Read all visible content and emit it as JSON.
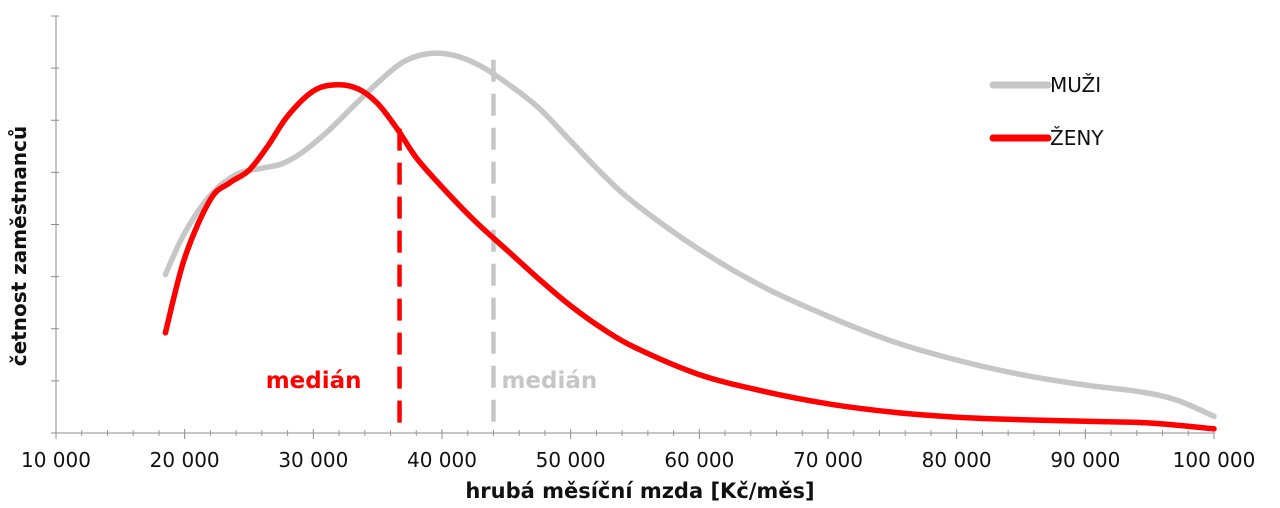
{
  "chart_data": {
    "type": "line",
    "xlabel": "hrubá měsíční mzda [Kč/měs]",
    "ylabel": "četnost zaměstnanců",
    "xlim": [
      10000,
      100000
    ],
    "ylim": [
      0,
      100
    ],
    "x_ticks": [
      "10 000",
      "20 000",
      "30 000",
      "40 000",
      "50 000",
      "60 000",
      "70 000",
      "80 000",
      "90 000",
      "100 000"
    ],
    "x_tick_values": [
      10000,
      20000,
      30000,
      40000,
      50000,
      60000,
      70000,
      80000,
      90000,
      100000
    ],
    "y_major_ticks": 8,
    "grid": false,
    "legend_position": "top-right",
    "series": [
      {
        "name": "MUŽI",
        "color": "#c6c6c6",
        "x": [
          18500,
          20000,
          22000,
          24000,
          26000,
          27500,
          29000,
          31000,
          33000,
          35000,
          37000,
          39000,
          41000,
          43000,
          45000,
          47500,
          50000,
          52500,
          55000,
          60000,
          65000,
          70000,
          75000,
          80000,
          85000,
          90000,
          94000,
          97000,
          100000
        ],
        "y": [
          38,
          48,
          57,
          62,
          63.5,
          64.5,
          67,
          72,
          78,
          84,
          89,
          91,
          90.5,
          88,
          84,
          78,
          70,
          62,
          55,
          44,
          35,
          28,
          22,
          17.5,
          14,
          11.5,
          10,
          8,
          4
        ]
      },
      {
        "name": "ŽENY",
        "color": "#ff0000",
        "x": [
          18500,
          20000,
          22000,
          23500,
          25000,
          26500,
          28000,
          30000,
          31800,
          33500,
          35000,
          36500,
          38000,
          40000,
          42500,
          45000,
          47500,
          50000,
          52500,
          55000,
          60000,
          65000,
          70000,
          75000,
          80000,
          85000,
          90000,
          95000,
          100000
        ],
        "y": [
          24,
          42,
          56,
          60,
          63,
          69,
          76,
          82,
          83.5,
          82.5,
          79,
          73,
          66,
          59,
          51,
          44,
          37,
          30.5,
          25,
          20.5,
          14,
          10,
          7,
          5,
          3.8,
          3.2,
          2.8,
          2.4,
          1
        ]
      }
    ],
    "medians": [
      {
        "label": "medián",
        "x": 36700,
        "y": 73,
        "color": "#ff0000",
        "label_side": "left"
      },
      {
        "label": "medián",
        "x": 44000,
        "y": 89.5,
        "color": "#c6c6c6",
        "label_side": "right"
      }
    ]
  }
}
